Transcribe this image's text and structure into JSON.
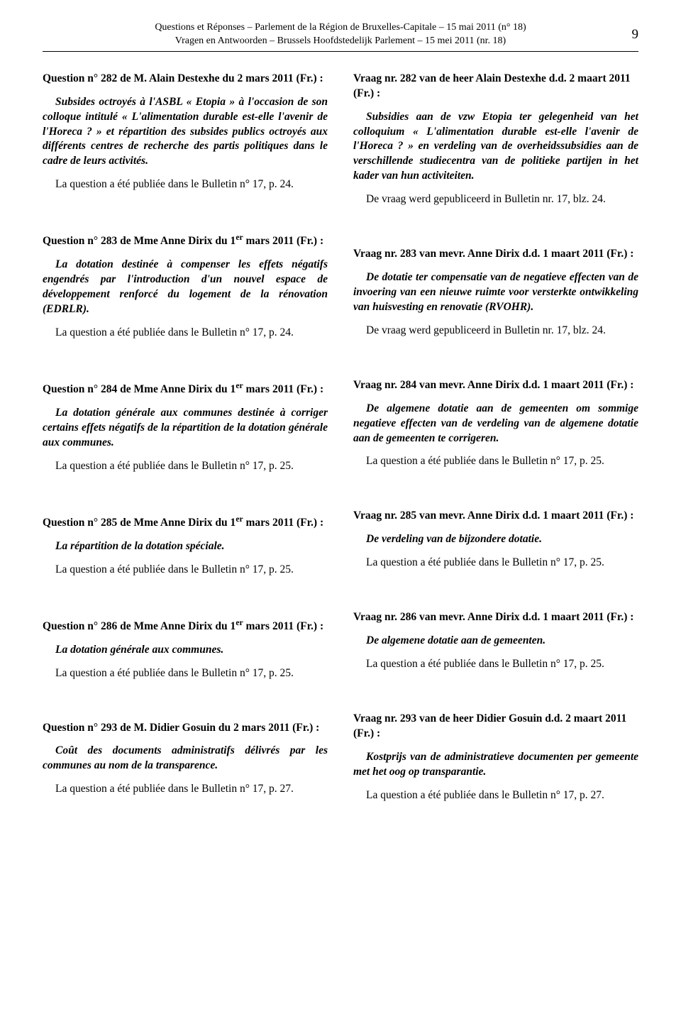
{
  "header": {
    "line_fr": "Questions et Réponses – Parlement de la Région de Bruxelles-Capitale – 15 mai 2011 (n° 18)",
    "line_nl": "Vragen en Antwoorden – Brussels Hoofdstedelijk Parlement – 15 mei 2011 (nr. 18)",
    "page_number": "9"
  },
  "left": {
    "q282": {
      "title": "Question n° 282 de M. Alain Destexhe du 2 mars 2011 (Fr.) :",
      "subject": "Subsides octroyés à l'ASBL « Etopia » à l'occasion de son colloque intitulé « L'alimentation durable est-elle l'avenir de l'Horeca ? » et répartition des subsides publics octroyés aux différents centres de recherche des partis politiques dans le cadre de leurs activités.",
      "pub": "La question a été publiée dans le Bulletin n° 17, p. 24."
    },
    "q283": {
      "title_html": "Question n° 283 de Mme Anne Dirix du 1<sup>er</sup> mars 2011 (Fr.) :",
      "subject": "La dotation destinée à compenser les effets négatifs engendrés par l'introduction d'un nouvel espace de développement renforcé du logement de la rénovation (EDRLR).",
      "pub": "La question a été publiée dans le Bulletin n° 17, p. 24."
    },
    "q284": {
      "title_html": "Question n° 284 de Mme Anne Dirix du 1<sup>er</sup> mars 2011 (Fr.) :",
      "subject": "La dotation générale aux communes destinée à corriger certains effets négatifs de la répartition de la dotation générale aux communes.",
      "pub": "La question a été publiée dans le Bulletin n° 17, p. 25."
    },
    "q285": {
      "title_html": "Question n° 285 de Mme Anne Dirix du 1<sup>er</sup> mars 2011 (Fr.) :",
      "subject": "La répartition de la dotation spéciale.",
      "pub": "La question a été publiée dans le Bulletin n° 17, p. 25."
    },
    "q286": {
      "title_html": "Question n° 286 de Mme Anne Dirix du 1<sup>er</sup> mars 2011 (Fr.) :",
      "subject": "La dotation générale aux communes.",
      "pub": "La question a été publiée dans le Bulletin n° 17, p. 25."
    },
    "q293": {
      "title": "Question n° 293 de M. Didier Gosuin du 2 mars 2011 (Fr.) :",
      "subject": "Coût des documents administratifs délivrés par les communes au nom de la transparence.",
      "pub": "La question a été publiée dans le Bulletin n° 17, p. 27."
    }
  },
  "right": {
    "q282": {
      "title": "Vraag nr. 282 van de heer Alain Destexhe d.d. 2 maart 2011 (Fr.) :",
      "subject": "Subsidies aan de vzw Etopia ter gelegenheid van het colloquium « L'alimentation durable est-elle l'avenir de l'Horeca ? » en verdeling van de overheidssubsidies aan de verschillende studiecentra van de politieke partijen in het kader van hun activiteiten.",
      "pub": "De vraag werd gepubliceerd in Bulletin nr. 17, blz. 24."
    },
    "q283": {
      "title": "Vraag nr. 283 van mevr. Anne Dirix d.d. 1 maart 2011 (Fr.) :",
      "subject": "De dotatie ter compensatie van de negatieve effecten van de invoering van een nieuwe ruimte voor versterkte ontwikkeling van huisvesting en renovatie (RVOHR).",
      "pub": "De vraag werd gepubliceerd in Bulletin nr. 17, blz. 24."
    },
    "q284": {
      "title": "Vraag nr. 284 van mevr. Anne Dirix d.d. 1 maart 2011 (Fr.) :",
      "subject": "De algemene dotatie aan de gemeenten om sommige negatieve effecten van de verdeling van de algemene dotatie aan de gemeenten te corrigeren.",
      "pub": "La question a été publiée dans le Bulletin n° 17, p. 25."
    },
    "q285": {
      "title": "Vraag nr. 285 van mevr. Anne Dirix d.d. 1 maart 2011 (Fr.) :",
      "subject": "De verdeling van de bijzondere dotatie.",
      "pub": "La question a été publiée dans le Bulletin n° 17, p. 25."
    },
    "q286": {
      "title": "Vraag nr. 286 van mevr. Anne Dirix d.d. 1 maart 2011 (Fr.) :",
      "subject": "De algemene dotatie aan de gemeenten.",
      "pub": "La question a été publiée dans le Bulletin n° 17, p. 25."
    },
    "q293": {
      "title": "Vraag nr. 293 van de heer Didier Gosuin d.d. 2 maart 2011 (Fr.) :",
      "subject": "Kostprijs van de administratieve documenten per gemeente met het oog op transparantie.",
      "pub": "La question a été publiée dans le Bulletin n° 17, p. 27."
    }
  }
}
